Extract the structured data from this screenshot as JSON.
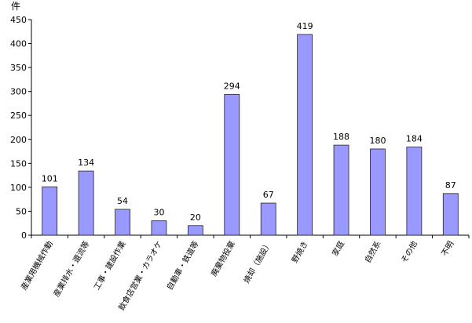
{
  "chart_data": {
    "type": "bar",
    "y_unit": "件",
    "categories": [
      "産業用機械作動",
      "産業排水・還流等",
      "工事・建設作業",
      "飲食店営業・カラオケ",
      "自動車・鉄道等",
      "廃棄物投棄",
      "焼却（施設）",
      "野焼き",
      "家庭",
      "自然系",
      "その他",
      "不明"
    ],
    "values": [
      101,
      134,
      54,
      30,
      20,
      294,
      67,
      419,
      188,
      180,
      184,
      87
    ],
    "color": "#9999ff",
    "ylim": [
      0,
      450
    ],
    "yticks": [
      0,
      50,
      100,
      150,
      200,
      250,
      300,
      350,
      400,
      450
    ],
    "grid": false
  }
}
